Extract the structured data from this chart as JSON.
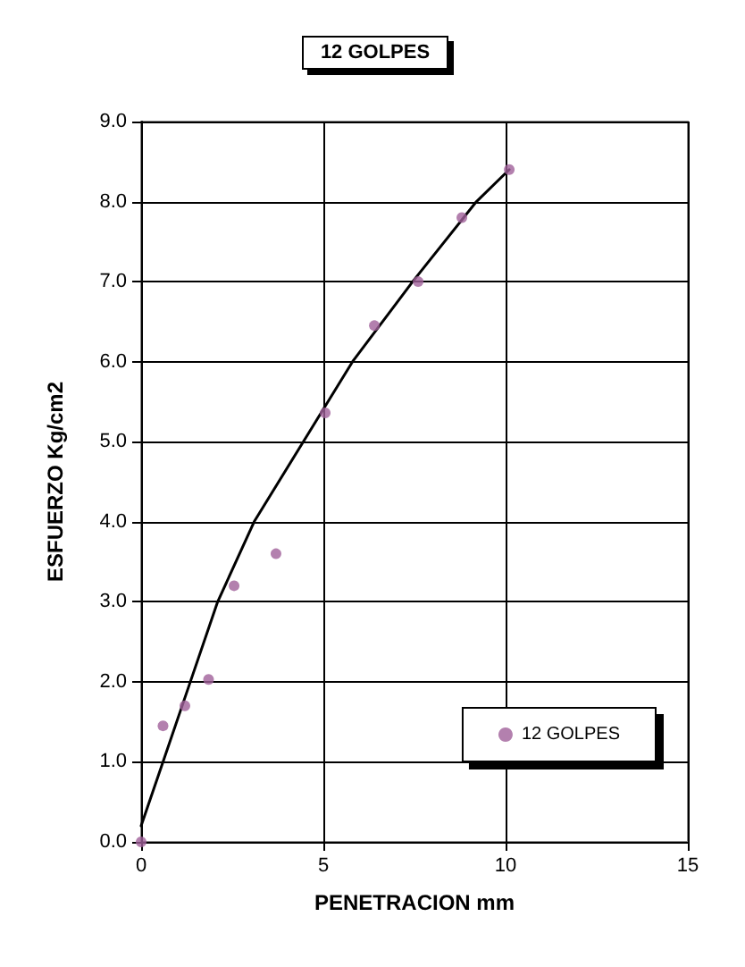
{
  "chart_data": {
    "type": "scatter",
    "title": "12 GOLPES",
    "xlabel": "PENETRACION mm",
    "ylabel": "ESFUERZO Kg/cm2",
    "series": [
      {
        "name": "12 GOLPES",
        "color": "#a0609a",
        "marker": "circle",
        "x": [
          0,
          0.6,
          1.2,
          1.85,
          2.55,
          3.7,
          5.05,
          6.4,
          7.6,
          8.8,
          10.1
        ],
        "values": [
          0,
          1.45,
          1.7,
          2.03,
          3.2,
          3.6,
          5.36,
          6.45,
          7.0,
          7.8,
          8.4
        ]
      },
      {
        "type": "line",
        "color": "#000000",
        "marker": "none",
        "line_style": "solid",
        "x": [
          0,
          0.6,
          1.35,
          2.1,
          3.1,
          4.45,
          5.8,
          7.45,
          9.2,
          10.1
        ],
        "values": [
          0.2,
          1.0,
          2.0,
          3.0,
          4.0,
          5.0,
          6.0,
          7.0,
          8.0,
          8.4
        ]
      }
    ],
    "xlim": [
      0,
      15
    ],
    "xticks": [
      0,
      5,
      10,
      15
    ],
    "ylim": [
      0,
      9
    ],
    "yticks": [
      {
        "value": 0,
        "label": "0.0"
      },
      {
        "value": 1,
        "label": "1.0"
      },
      {
        "value": 2,
        "label": "2.0"
      },
      {
        "value": 3,
        "label": "3.0"
      },
      {
        "value": 4,
        "label": "4.0"
      },
      {
        "value": 5,
        "label": "5.0"
      },
      {
        "value": 6,
        "label": "6.0"
      },
      {
        "value": 7,
        "label": "7.0"
      },
      {
        "value": 8,
        "label": "8.0"
      },
      {
        "value": 9,
        "label": "9.0"
      }
    ],
    "grid": true,
    "legend": "bottom right"
  }
}
